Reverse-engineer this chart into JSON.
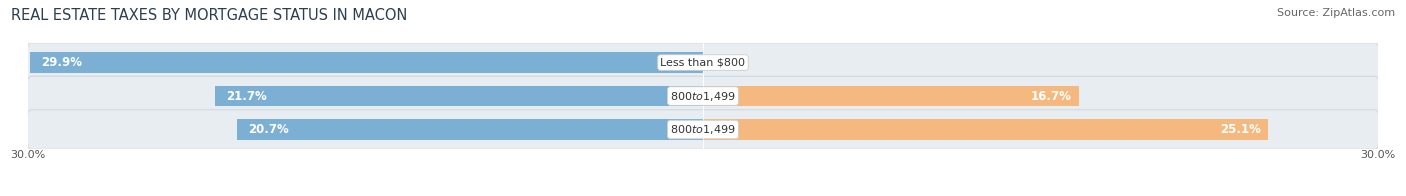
{
  "title": "REAL ESTATE TAXES BY MORTGAGE STATUS IN MACON",
  "source": "Source: ZipAtlas.com",
  "rows": [
    {
      "label": "Less than $800",
      "without_mortgage": 29.9,
      "with_mortgage": 0.0
    },
    {
      "label": "$800 to $1,499",
      "without_mortgage": 21.7,
      "with_mortgage": 16.7
    },
    {
      "label": "$800 to $1,499",
      "without_mortgage": 20.7,
      "with_mortgage": 25.1
    }
  ],
  "xlim": 30.0,
  "color_without": "#7bafd4",
  "color_with": "#f5b97f",
  "color_with_light": "#f9d4a8",
  "bar_height": 0.62,
  "title_fontsize": 10.5,
  "source_fontsize": 8,
  "bar_value_fontsize": 8.5,
  "label_fontsize": 8,
  "axis_tick_fontsize": 8,
  "legend_fontsize": 9,
  "row_bg_color": "#e8edf2",
  "row_bg_edge": "#d0d8e0"
}
